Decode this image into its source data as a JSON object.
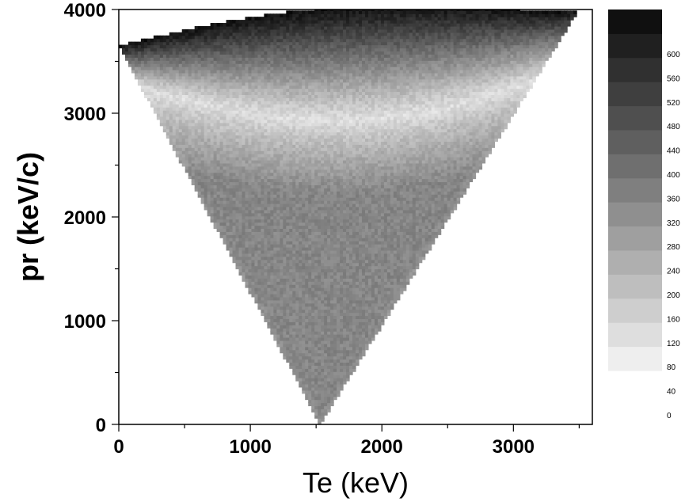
{
  "chart_data": {
    "type": "heatmap",
    "title": "",
    "xlabel": "Te (keV)",
    "ylabel": "pr (keV/c)",
    "xlim": [
      0,
      3600
    ],
    "ylim": [
      0,
      4000
    ],
    "x_ticks": [
      0,
      1000,
      2000,
      3000
    ],
    "y_ticks": [
      0,
      1000,
      2000,
      3000,
      4000
    ],
    "x_tick_labels": [
      "0",
      "1000",
      "2000",
      "3000"
    ],
    "y_tick_labels": [
      "0",
      "1000",
      "2000",
      "3000",
      "4000"
    ],
    "colorscale": "grayscale (light = low, dark = high)",
    "colorbar": {
      "levels": [
        0,
        40,
        80,
        120,
        160,
        200,
        240,
        280,
        320,
        360,
        400,
        440,
        480,
        520,
        560,
        600
      ],
      "labels": [
        "0",
        "40",
        "80",
        "120",
        "160",
        "200",
        "240",
        "280",
        "320",
        "360",
        "400",
        "440",
        "480",
        "520",
        "560",
        "600"
      ]
    },
    "region": {
      "shape": "inverted triangle bounded by a curved upper edge",
      "apex": [
        1530,
        0
      ],
      "upper_left": [
        0,
        3650
      ],
      "upper_right": [
        3500,
        4000
      ]
    },
    "grid": false,
    "legend": "colorbar right"
  }
}
